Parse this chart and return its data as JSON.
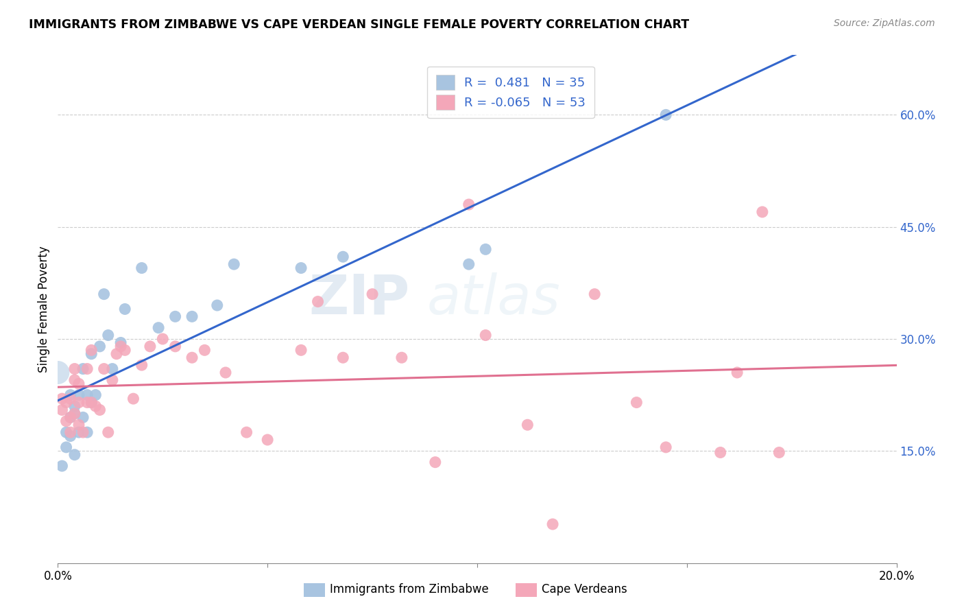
{
  "title": "IMMIGRANTS FROM ZIMBABWE VS CAPE VERDEAN SINGLE FEMALE POVERTY CORRELATION CHART",
  "source": "Source: ZipAtlas.com",
  "ylabel": "Single Female Poverty",
  "xlim": [
    0.0,
    0.2
  ],
  "ylim": [
    0.0,
    0.68
  ],
  "x_ticks": [
    0.0,
    0.05,
    0.1,
    0.15,
    0.2
  ],
  "x_tick_labels": [
    "0.0%",
    "",
    "",
    "",
    "20.0%"
  ],
  "y_ticks_right": [
    0.15,
    0.3,
    0.45,
    0.6
  ],
  "y_tick_labels_right": [
    "15.0%",
    "30.0%",
    "45.0%",
    "60.0%"
  ],
  "zim_color": "#a8c4e0",
  "cape_color": "#f4a7b9",
  "zim_line_color": "#3366cc",
  "cape_line_color": "#e07090",
  "legend_r_zim": "R =  0.481   N = 35",
  "legend_r_cape": "R = -0.065   N = 53",
  "watermark_zip": "ZIP",
  "watermark_atlas": "atlas",
  "zim_points_x": [
    0.001,
    0.002,
    0.002,
    0.003,
    0.003,
    0.003,
    0.004,
    0.004,
    0.004,
    0.005,
    0.005,
    0.006,
    0.006,
    0.007,
    0.007,
    0.008,
    0.008,
    0.009,
    0.01,
    0.011,
    0.012,
    0.013,
    0.015,
    0.016,
    0.02,
    0.024,
    0.028,
    0.032,
    0.038,
    0.042,
    0.058,
    0.068,
    0.098,
    0.102,
    0.145
  ],
  "zim_points_y": [
    0.13,
    0.155,
    0.175,
    0.17,
    0.195,
    0.225,
    0.145,
    0.2,
    0.21,
    0.175,
    0.225,
    0.195,
    0.26,
    0.175,
    0.225,
    0.215,
    0.28,
    0.225,
    0.29,
    0.36,
    0.305,
    0.26,
    0.295,
    0.34,
    0.395,
    0.315,
    0.33,
    0.33,
    0.345,
    0.4,
    0.395,
    0.41,
    0.4,
    0.42,
    0.6
  ],
  "cape_points_x": [
    0.001,
    0.001,
    0.002,
    0.002,
    0.003,
    0.003,
    0.003,
    0.004,
    0.004,
    0.004,
    0.005,
    0.005,
    0.005,
    0.006,
    0.007,
    0.007,
    0.008,
    0.008,
    0.009,
    0.01,
    0.011,
    0.012,
    0.013,
    0.014,
    0.015,
    0.016,
    0.018,
    0.02,
    0.022,
    0.025,
    0.028,
    0.032,
    0.035,
    0.04,
    0.045,
    0.05,
    0.058,
    0.062,
    0.068,
    0.075,
    0.082,
    0.09,
    0.098,
    0.102,
    0.112,
    0.118,
    0.128,
    0.138,
    0.145,
    0.158,
    0.162,
    0.168,
    0.172
  ],
  "cape_points_y": [
    0.205,
    0.22,
    0.19,
    0.215,
    0.175,
    0.195,
    0.22,
    0.2,
    0.245,
    0.26,
    0.185,
    0.215,
    0.24,
    0.175,
    0.215,
    0.26,
    0.215,
    0.285,
    0.21,
    0.205,
    0.26,
    0.175,
    0.245,
    0.28,
    0.29,
    0.285,
    0.22,
    0.265,
    0.29,
    0.3,
    0.29,
    0.275,
    0.285,
    0.255,
    0.175,
    0.165,
    0.285,
    0.35,
    0.275,
    0.36,
    0.275,
    0.135,
    0.48,
    0.305,
    0.185,
    0.052,
    0.36,
    0.215,
    0.155,
    0.148,
    0.255,
    0.47,
    0.148
  ],
  "zim_line_x0": 0.0,
  "zim_line_x1": 0.2,
  "cape_line_x0": 0.0,
  "cape_line_x1": 0.2
}
